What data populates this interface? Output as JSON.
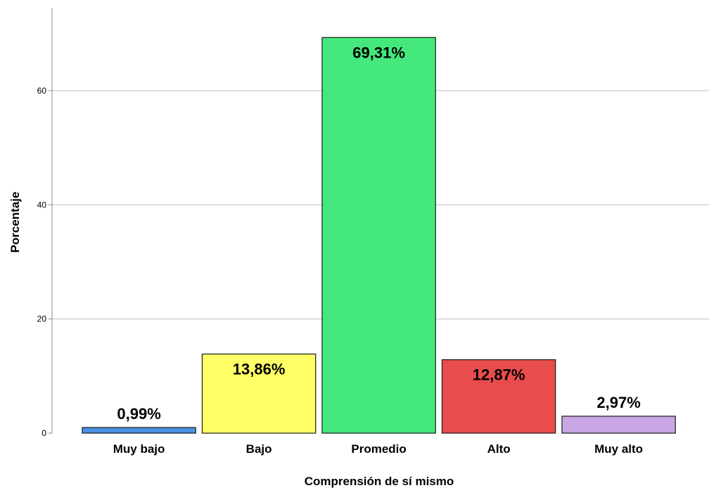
{
  "chart_data": {
    "type": "bar",
    "xlabel": "Comprensión de sí mismo",
    "ylabel": "Porcentaje",
    "ylim": [
      0,
      74.4
    ],
    "yticks": [
      0,
      20,
      40,
      60
    ],
    "grid": true,
    "categories": [
      "Muy bajo",
      "Bajo",
      "Promedio",
      "Alto",
      "Muy alto"
    ],
    "values": [
      0.99,
      13.86,
      69.31,
      12.87,
      2.97
    ],
    "data_labels": [
      "0,99%",
      "13,86%",
      "69,31%",
      "12,87%",
      "2,97%"
    ],
    "label_inside": [
      false,
      true,
      true,
      true,
      false
    ],
    "colors": [
      "#4a90e2",
      "#ffff66",
      "#44e87c",
      "#e84c4c",
      "#c8a6e4"
    ]
  }
}
